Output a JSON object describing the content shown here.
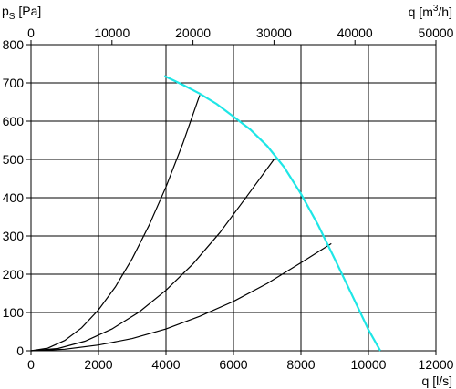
{
  "chart_data": {
    "type": "line",
    "x_axis": {
      "label": "q [l/s]",
      "ticks": [
        "0",
        "2000",
        "4000",
        "6000",
        "8000",
        "10000",
        "12000"
      ],
      "range": [
        0,
        12000
      ]
    },
    "x2_axis": {
      "label": "q [m3/h]",
      "label_base": "q [m",
      "label_sup": "3",
      "label_end": "/h]",
      "ticks": [
        "0",
        "10000",
        "20000",
        "30000",
        "40000",
        "50000"
      ],
      "range": [
        0,
        50000
      ]
    },
    "y_axis": {
      "label": "pS [Pa]",
      "label_base": "p",
      "label_sub": "S",
      "label_end": " [Pa]",
      "ticks": [
        "0",
        "100",
        "200",
        "300",
        "400",
        "500",
        "600",
        "700",
        "800"
      ],
      "range": [
        0,
        800
      ]
    },
    "grid": true,
    "fan_curve": {
      "color": "#1ee6e6",
      "points": [
        [
          3950,
          718
        ],
        [
          4500,
          695
        ],
        [
          5000,
          672
        ],
        [
          5500,
          645
        ],
        [
          6000,
          612
        ],
        [
          6500,
          578
        ],
        [
          7000,
          535
        ],
        [
          7500,
          480
        ],
        [
          8000,
          410
        ],
        [
          8500,
          330
        ],
        [
          9000,
          240
        ],
        [
          9500,
          148
        ],
        [
          10000,
          55
        ],
        [
          10350,
          0
        ]
      ]
    },
    "system_curves": [
      {
        "points": [
          [
            0,
            0
          ],
          [
            500,
            7
          ],
          [
            1000,
            27
          ],
          [
            1500,
            60
          ],
          [
            2000,
            107
          ],
          [
            2500,
            167
          ],
          [
            3000,
            241
          ],
          [
            3500,
            328
          ],
          [
            4000,
            428
          ],
          [
            4500,
            542
          ],
          [
            5000,
            668
          ]
        ]
      },
      {
        "points": [
          [
            0,
            0
          ],
          [
            800,
            6
          ],
          [
            1600,
            25
          ],
          [
            2400,
            57
          ],
          [
            3200,
            101
          ],
          [
            4000,
            158
          ],
          [
            4800,
            227
          ],
          [
            5600,
            309
          ],
          [
            6400,
            404
          ],
          [
            7200,
            500
          ]
        ]
      },
      {
        "points": [
          [
            0,
            0
          ],
          [
            1000,
            4
          ],
          [
            2000,
            15
          ],
          [
            3000,
            32
          ],
          [
            4000,
            57
          ],
          [
            5000,
            90
          ],
          [
            6000,
            129
          ],
          [
            7000,
            176
          ],
          [
            8000,
            230
          ],
          [
            8900,
            280
          ]
        ]
      }
    ],
    "system_curve_color": "#000000"
  }
}
